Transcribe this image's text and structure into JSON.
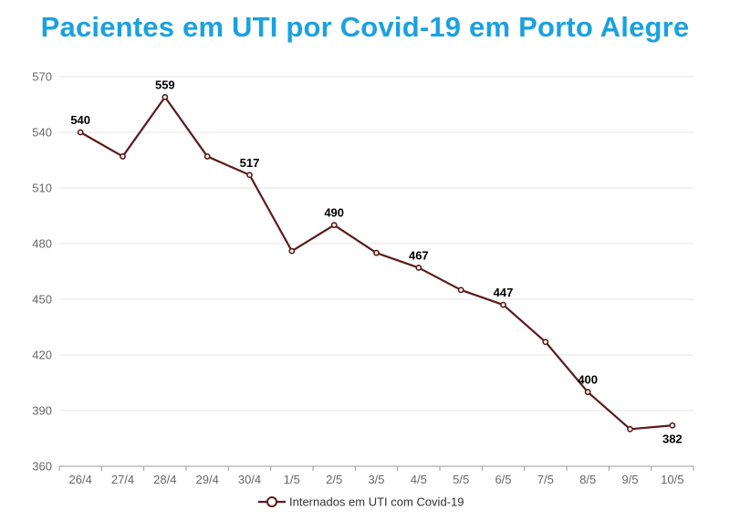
{
  "chart_data": {
    "type": "line",
    "title": "Pacientes em UTI por Covid-19 em Porto Alegre",
    "categories": [
      "26/4",
      "27/4",
      "28/4",
      "29/4",
      "30/4",
      "1/5",
      "2/5",
      "3/5",
      "4/5",
      "5/5",
      "6/5",
      "7/5",
      "8/5",
      "9/5",
      "10/5"
    ],
    "series": [
      {
        "name": "Internados em UTI com Covid-19",
        "values": [
          540,
          527,
          559,
          527,
          517,
          476,
          490,
          475,
          467,
          455,
          447,
          427,
          400,
          380,
          382
        ],
        "labels": [
          "540",
          "",
          "559",
          "",
          "517",
          "",
          "490",
          "",
          "467",
          "",
          "447",
          "",
          "400",
          "",
          "382"
        ],
        "color": "#5c1a1a"
      }
    ],
    "yticks": [
      "360",
      "390",
      "420",
      "450",
      "480",
      "510",
      "540",
      "570"
    ],
    "ylim": [
      360,
      570
    ],
    "grid": true,
    "legend_position": "bottom",
    "title_color": "#1aa1e0"
  }
}
